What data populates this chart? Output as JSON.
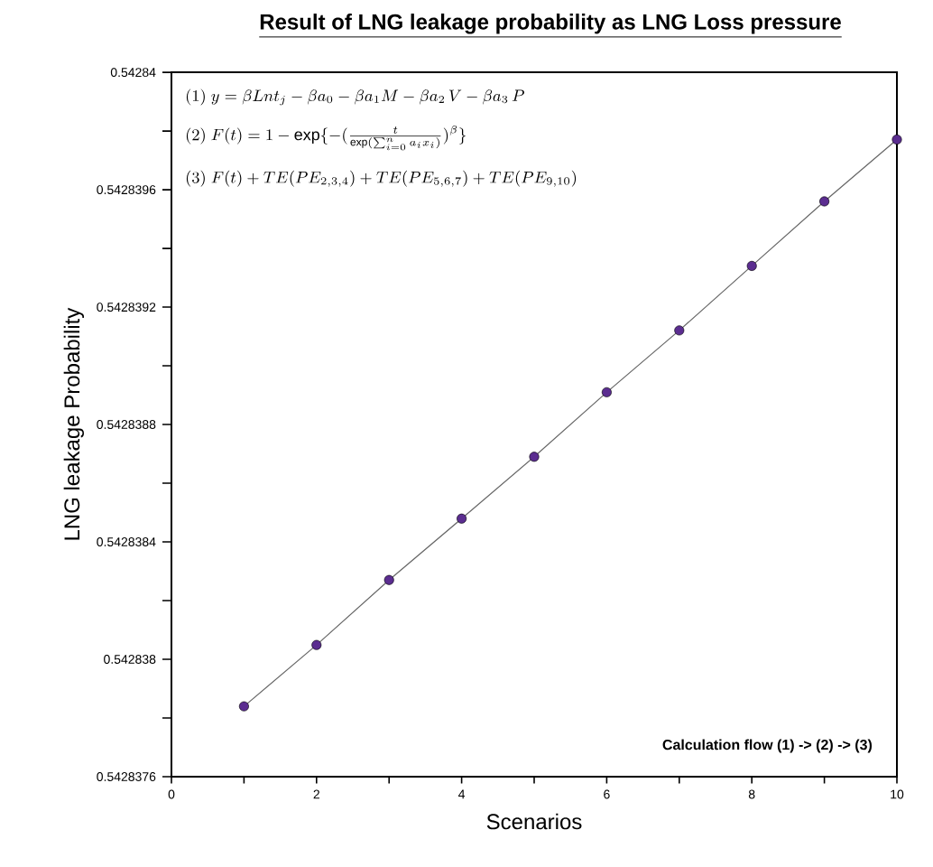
{
  "chart_data": {
    "type": "line",
    "title": "Result of LNG leakage probability as LNG Loss pressure",
    "xlabel": "Scenarios",
    "ylabel": "LNG leakage Probability",
    "x": [
      1,
      2,
      3,
      4,
      5,
      6,
      7,
      8,
      9,
      10
    ],
    "series": [
      {
        "color": "#5b2d90",
        "values": [
          0.54283784,
          0.54283805,
          0.54283827,
          0.54283848,
          0.54283869,
          0.54283891,
          0.54283912,
          0.54283934,
          0.54283956,
          0.54283977
        ]
      }
    ],
    "marker": "circle",
    "line_style": "solid",
    "grid": false,
    "xlim": [
      0,
      10
    ],
    "xticks": [
      0,
      {
        "value": 1,
        "label": null
      },
      2,
      {
        "value": 3,
        "label": null
      },
      4,
      {
        "value": 5,
        "label": null
      },
      6,
      {
        "value": 7,
        "label": null
      },
      8,
      {
        "value": 9,
        "label": null
      },
      10
    ],
    "ylim": [
      0.5428376,
      0.54284
    ],
    "yticks": [
      0.5428376,
      {
        "value": 0.5428378,
        "label": null
      },
      0.542838,
      {
        "value": 0.5428382,
        "label": null
      },
      0.5428384,
      {
        "value": 0.5428386,
        "label": null
      },
      0.5428388,
      {
        "value": 0.542839,
        "label": null
      },
      0.5428392,
      {
        "value": 0.5428394,
        "label": null
      },
      0.5428396,
      {
        "value": 0.5428398,
        "label": null
      },
      0.54284
    ],
    "annotations": [
      "(1)\\ y = \\beta Lnt_j - \\beta a_0 - \\beta a_1 M - \\beta a_2\\, V - \\beta a_3\\, P",
      "(2)\\ F(t) = 1 - \\exp\\{-(\\frac{t}{\\exp(\\sum_{i=0}^{n} a_i x_i)})^{\\beta}\\}",
      "(3)\\ F(t) + TE(PE_{2,3,4}) + TE(PE_{5,6,7}) + TE(PE_{9,10})",
      "Calculation flow (1) -> (2) -> (3)"
    ]
  }
}
